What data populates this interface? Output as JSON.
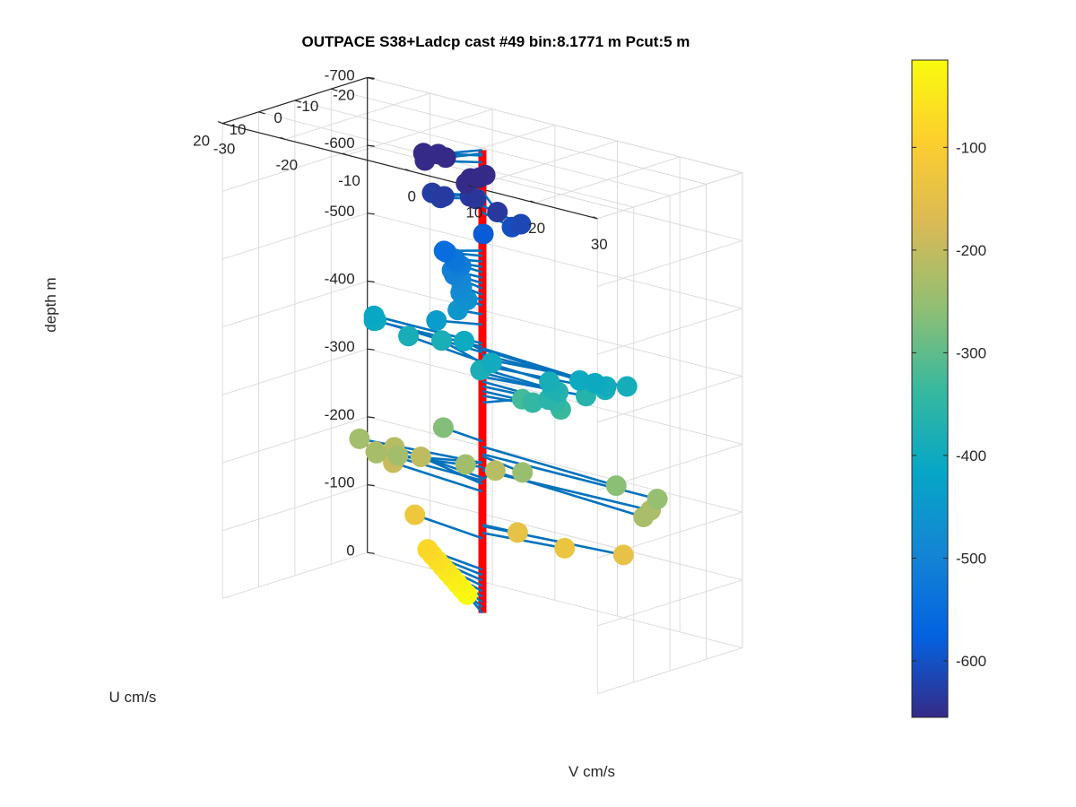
{
  "chart_data": {
    "type": "scatter",
    "title": "OUTPACE S38+Ladcp cast #49 bin:8.1771 m  Pcut:5 m",
    "xlabel": "V cm/s",
    "ylabel": "U cm/s",
    "zlabel": "depth m",
    "xlim": [
      -30,
      30
    ],
    "ylim": [
      -20,
      20
    ],
    "zlim": [
      -700,
      0
    ],
    "xticks": [
      "-30",
      "-20",
      "-10",
      "0",
      "10",
      "20",
      "30"
    ],
    "yticks": [
      "-20",
      "-10",
      "0",
      "10",
      "20"
    ],
    "zticks": [
      "0",
      "-100",
      "-200",
      "-300",
      "-400",
      "-500",
      "-600",
      "-700"
    ],
    "grid": true,
    "colorbar": {
      "range": [
        -655,
        -15
      ],
      "ticks": [
        "-100",
        "-200",
        "-300",
        "-400",
        "-500",
        "-600"
      ],
      "colormap": [
        "#352a87",
        "#0363e1",
        "#1485d4",
        "#06a7c6",
        "#38b99e",
        "#92bf73",
        "#d9ba56",
        "#fcce2e",
        "#f9fb0e"
      ]
    },
    "profile_color": "#ff0000",
    "stick_color": "#0072bd",
    "points": [
      {
        "depth": -15,
        "v": -6.5,
        "u": -7
      },
      {
        "depth": -23,
        "v": -7,
        "u": -6.5
      },
      {
        "depth": -31,
        "v": -7.5,
        "u": -6
      },
      {
        "depth": -39,
        "v": -8,
        "u": -5.5
      },
      {
        "depth": -47,
        "v": -8.5,
        "u": -5
      },
      {
        "depth": -55,
        "v": -9,
        "u": -4.5
      },
      {
        "depth": -63,
        "v": -9.5,
        "u": -4
      },
      {
        "depth": -71,
        "v": -10,
        "u": -3.5
      },
      {
        "depth": -79,
        "v": -10.5,
        "u": -3
      },
      {
        "depth": -125,
        "v": -12.6,
        "u": -3.1
      },
      {
        "depth": -145,
        "v": 5.3,
        "u": -0.6
      },
      {
        "depth": -133,
        "v": 11.6,
        "u": -2.7
      },
      {
        "depth": -143,
        "v": 20.6,
        "u": -3.4
      },
      {
        "depth": -194,
        "v": -16.0,
        "u": -3.0
      },
      {
        "depth": -205,
        "v": -13.1,
        "u": -5.6
      },
      {
        "depth": -212,
        "v": -1.3,
        "u": -5.8
      },
      {
        "depth": -214,
        "v": -16.4,
        "u": -4.0
      },
      {
        "depth": -210,
        "v": -17.6,
        "u": -0.9
      },
      {
        "depth": -225,
        "v": 26.1,
        "u": -1.4
      },
      {
        "depth": -230,
        "v": -13.3,
        "u": 6.3
      },
      {
        "depth": -236,
        "v": -17.7,
        "u": 3.4
      },
      {
        "depth": -229,
        "v": 28.1,
        "u": 4.0
      },
      {
        "depth": -237,
        "v": -0.9,
        "u": 3.1
      },
      {
        "depth": -246,
        "v": 8.1,
        "u": 2.9
      },
      {
        "depth": -237,
        "v": -9.4,
        "u": 7.1
      },
      {
        "depth": -249,
        "v": 28.1,
        "u": 0.2
      },
      {
        "depth": -260,
        "v": 22.8,
        "u": 2.4
      },
      {
        "depth": -268,
        "v": -7.3,
        "u": -1.8
      },
      {
        "depth": -325,
        "v": 2.6,
        "u": -6.5
      },
      {
        "depth": -335,
        "v": 10.8,
        "u": -3.0
      },
      {
        "depth": -342,
        "v": 7.7,
        "u": -0.6
      },
      {
        "depth": -349,
        "v": 11.0,
        "u": -1.4
      },
      {
        "depth": -356,
        "v": 10.9,
        "u": 0.6
      },
      {
        "depth": -363,
        "v": 14.6,
        "u": -3.4
      },
      {
        "depth": -369,
        "v": 12.2,
        "u": 0.1
      },
      {
        "depth": -375,
        "v": 12.0,
        "u": 1.4
      },
      {
        "depth": -380,
        "v": 17.8,
        "u": -3.2
      },
      {
        "depth": -382,
        "v": 1.6,
        "u": 3.3
      },
      {
        "depth": -386,
        "v": 11.7,
        "u": 1.7
      },
      {
        "depth": -385,
        "v": -13.8,
        "u": -3.4
      },
      {
        "depth": -383,
        "v": -10.0,
        "u": -6.0
      },
      {
        "depth": -390,
        "v": 20.7,
        "u": -4.2
      },
      {
        "depth": -396,
        "v": 3.2,
        "u": 3.0
      },
      {
        "depth": -396,
        "v": 20.0,
        "u": 0.3
      },
      {
        "depth": -399,
        "v": -18.4,
        "u": -2.4
      },
      {
        "depth": -402,
        "v": -4.2,
        "u": -2.2
      },
      {
        "depth": -403,
        "v": 17.3,
        "u": 3.0
      },
      {
        "depth": -405,
        "v": 19.8,
        "u": 3.1
      },
      {
        "depth": -407,
        "v": -17.0,
        "u": 0.6
      },
      {
        "depth": -412,
        "v": -17.4,
        "u": -0.1
      },
      {
        "depth": -440,
        "v": -5.2,
        "u": 3.7
      },
      {
        "depth": -455,
        "v": -3.4,
        "u": 0.9
      },
      {
        "depth": -468,
        "v": -2.9,
        "u": -0.8
      },
      {
        "depth": -476,
        "v": -4.0,
        "u": -0.9
      },
      {
        "depth": -484,
        "v": -4.1,
        "u": -1.4
      },
      {
        "depth": -493,
        "v": -4.5,
        "u": -1.8
      },
      {
        "depth": -501,
        "v": -4.8,
        "u": -0.5
      },
      {
        "depth": -509,
        "v": -4.8,
        "u": 0.1
      },
      {
        "depth": -517,
        "v": -3.7,
        "u": -0.5
      },
      {
        "depth": -525,
        "v": -3.5,
        "u": 1.3
      },
      {
        "depth": -533,
        "v": -3.1,
        "u": 2.2
      },
      {
        "depth": -541,
        "v": -4.2,
        "u": 2.7
      },
      {
        "depth": -549,
        "v": -3.3,
        "u": 4.9
      },
      {
        "depth": -585,
        "v": 2.3,
        "u": 3.7
      },
      {
        "depth": -605,
        "v": 6.7,
        "u": 3.4
      },
      {
        "depth": -615,
        "v": 8.6,
        "u": 4.2
      },
      {
        "depth": -626,
        "v": -3.8,
        "u": 5.0
      },
      {
        "depth": -630,
        "v": -5.2,
        "u": 4.9
      },
      {
        "depth": -636,
        "v": 7.1,
        "u": 8.1
      },
      {
        "depth": -633,
        "v": -2.6,
        "u": 6.1
      },
      {
        "depth": -635,
        "v": 0.1,
        "u": 3.6
      },
      {
        "depth": -638,
        "v": 1.9,
        "u": 5.1
      },
      {
        "depth": -652,
        "v": -0.7,
        "u": 3.3
      },
      {
        "depth": -662,
        "v": 0.8,
        "u": 2.2
      },
      {
        "depth": -665,
        "v": 0.8,
        "u": 4.7
      },
      {
        "depth": -671,
        "v": 2.3,
        "u": 3.2
      },
      {
        "depth": -679,
        "v": -5.6,
        "u": 6.2
      },
      {
        "depth": -689,
        "v": -5.9,
        "u": 6.1
      },
      {
        "depth": -692,
        "v": -2.1,
        "u": 6.5
      },
      {
        "depth": -697,
        "v": -2.8,
        "u": 7.4
      }
    ]
  }
}
